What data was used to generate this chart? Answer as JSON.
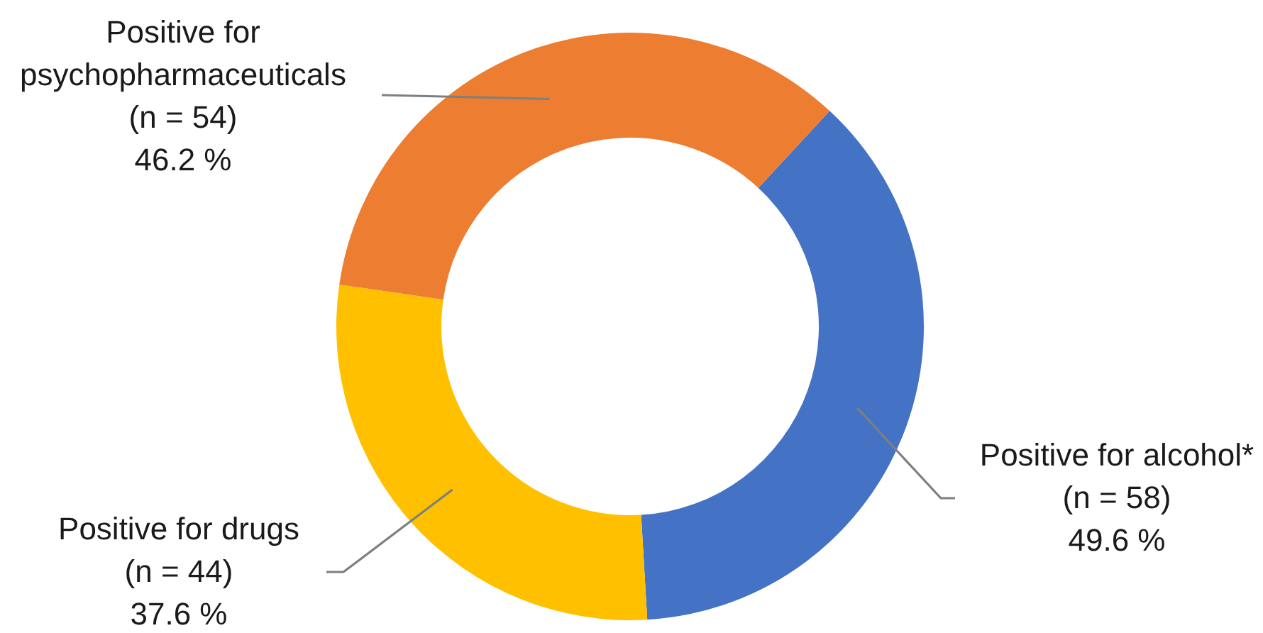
{
  "chart_data": {
    "type": "donut",
    "categories": [
      "Positive for alcohol*",
      "Positive for drugs",
      "Positive for psychopharmaceuticals"
    ],
    "values": [
      58,
      44,
      54
    ],
    "colors": [
      "#4472c4",
      "#ffc000",
      "#ed7d31"
    ],
    "value_labels": [
      "(n = 58)\n49.6 %",
      "(n = 44)\n37.6 %",
      "(n = 54)\n46.2 %"
    ]
  }
}
